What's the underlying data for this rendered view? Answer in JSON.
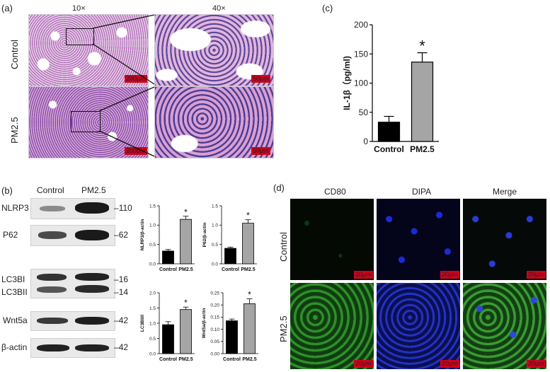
{
  "panel_a": {
    "label": "(a)",
    "col_headers": [
      "10×",
      "40×"
    ],
    "row_labels": [
      "Control",
      "PM2.5"
    ],
    "scale_10x": "200μm",
    "scale_40x": "50μm"
  },
  "panel_b": {
    "label": "(b)",
    "lane_labels": [
      "Control",
      "PM2.5"
    ],
    "proteins": [
      "NLRP3",
      "P62",
      "LC3BI",
      "LC3BII",
      "Wnt5a",
      "β-actin"
    ],
    "markers": [
      "110",
      "62",
      "16",
      "14",
      "42",
      "42"
    ]
  },
  "panel_c": {
    "label": "(c)"
  },
  "panel_d": {
    "label": "(d)",
    "col_headers": [
      "CD80",
      "DIPA",
      "Merge"
    ],
    "row_labels": [
      "Control",
      "PM2.5"
    ],
    "scale": "20μm"
  },
  "chart_data": [
    {
      "id": "il1b",
      "type": "bar",
      "categories": [
        "Control",
        "PM2.5"
      ],
      "values": [
        33,
        136
      ],
      "errors": [
        10,
        16
      ],
      "colors": [
        "#000000",
        "#a5a5a5"
      ],
      "ylabel": "IL-1β（pg/ml)",
      "ylim": [
        0,
        200
      ],
      "yticks": [
        0,
        50,
        100,
        150,
        200
      ],
      "annotation": "*"
    },
    {
      "id": "nlrp3",
      "type": "bar",
      "categories": [
        "Control",
        "PM2.5"
      ],
      "values": [
        0.33,
        1.15
      ],
      "errors": [
        0.04,
        0.08
      ],
      "colors": [
        "#000000",
        "#a5a5a5"
      ],
      "ylabel": "NLRP3/β-actin",
      "ylim": [
        0,
        1.5
      ],
      "yticks": [
        0.0,
        0.5,
        1.0,
        1.5
      ],
      "annotation": "*"
    },
    {
      "id": "p62",
      "type": "bar",
      "categories": [
        "Control",
        "PM2.5"
      ],
      "values": [
        0.4,
        1.05
      ],
      "errors": [
        0.03,
        0.09
      ],
      "colors": [
        "#000000",
        "#a5a5a5"
      ],
      "ylabel": "P62/β-actin",
      "ylim": [
        0,
        1.5
      ],
      "yticks": [
        0.0,
        0.5,
        1.0,
        1.5
      ],
      "annotation": "*"
    },
    {
      "id": "lc3",
      "type": "bar",
      "categories": [
        "Control",
        "PM2.5"
      ],
      "values": [
        0.95,
        1.45
      ],
      "errors": [
        0.1,
        0.08
      ],
      "colors": [
        "#000000",
        "#a5a5a5"
      ],
      "ylabel": "LC3BII/I",
      "ylim": [
        0,
        2.0
      ],
      "yticks": [
        0.0,
        0.5,
        1.0,
        1.5,
        2.0
      ],
      "annotation": "*"
    },
    {
      "id": "wnt5a",
      "type": "bar",
      "categories": [
        "Control",
        "PM2.5"
      ],
      "values": [
        0.135,
        0.205
      ],
      "errors": [
        0.007,
        0.02
      ],
      "colors": [
        "#000000",
        "#a5a5a5"
      ],
      "ylabel": "Wnt5a/β-actin",
      "ylim": [
        0,
        0.25
      ],
      "yticks": [
        0.0,
        0.05,
        0.1,
        0.15,
        0.2,
        0.25
      ],
      "annotation": "*"
    }
  ]
}
